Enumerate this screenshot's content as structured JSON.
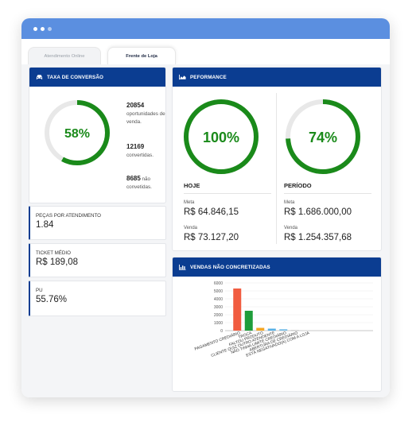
{
  "tabs": [
    {
      "label": "Atendimento Online",
      "active": false
    },
    {
      "label": "Frente de Loja",
      "active": true
    }
  ],
  "conversion": {
    "title": "TAXA DE CONVERSÃO",
    "icon": "car-icon",
    "percent_label": "58%",
    "percent": 58,
    "opportunities_num": "20854",
    "opportunities_text": "oportunidades de venda.",
    "converted_num": "12169",
    "converted_text": "convertidas.",
    "not_converted_num": "8685",
    "not_converted_text_a": " não",
    "not_converted_text_b": "convetidas."
  },
  "metrics": [
    {
      "label": "PEÇAS POR ATENDIMENTO",
      "value": "1.84"
    },
    {
      "label": "TICKET MÉDIO",
      "value": "R$ 189,08"
    },
    {
      "label": "PU",
      "value": "55.76%"
    }
  ],
  "performance": {
    "title": "PEFORMANCE",
    "icon": "area-chart-icon",
    "today": {
      "title": "HOJE",
      "percent_label": "100%",
      "percent": 100,
      "meta_label": "Meta",
      "meta_value": "R$ 64.846,15",
      "sale_label": "Venda",
      "sale_value": "R$ 73.127,20"
    },
    "period": {
      "title": "PERÍODO",
      "percent_label": "74%",
      "percent": 74,
      "meta_label": "Meta",
      "meta_value": "R$ 1.686.000,00",
      "sale_label": "Venda",
      "sale_value": "R$ 1.254.357,68"
    }
  },
  "lost_sales": {
    "title": "VENDAS NÃO CONCRETIZADAS",
    "icon": "bar-chart-icon"
  },
  "colors": {
    "header": "#0b3d91",
    "gauge_green": "#1a8a1a",
    "gauge_track": "#e8e8e8",
    "titlebar": "#5b8fe0"
  },
  "chart_data": {
    "type": "bar",
    "categories": [
      "PAGAMENTO CREDIÁRIO",
      "TROCA",
      "FALTOU PRODUTO",
      "CLIENTE QUIZ OUTRO ATENDENTE",
      "NÃO TINHA LIMITE CREDIÁRIO",
      "ABERTURA DE CREDIÁRIO",
      "ESTÁ NEGATIVADO(A) COM A LOJA"
    ],
    "values": [
      5300,
      2500,
      350,
      250,
      180,
      60,
      30
    ],
    "colors": [
      "#f15c40",
      "#1f9d3a",
      "#f5a623",
      "#57b0e6",
      "#7bc0e8",
      "#b0b0b0",
      "#d0d0d0"
    ],
    "yticks": [
      "0",
      "1000",
      "2000",
      "3000",
      "4000",
      "5000",
      "6000"
    ],
    "ylim": [
      0,
      6000
    ]
  }
}
